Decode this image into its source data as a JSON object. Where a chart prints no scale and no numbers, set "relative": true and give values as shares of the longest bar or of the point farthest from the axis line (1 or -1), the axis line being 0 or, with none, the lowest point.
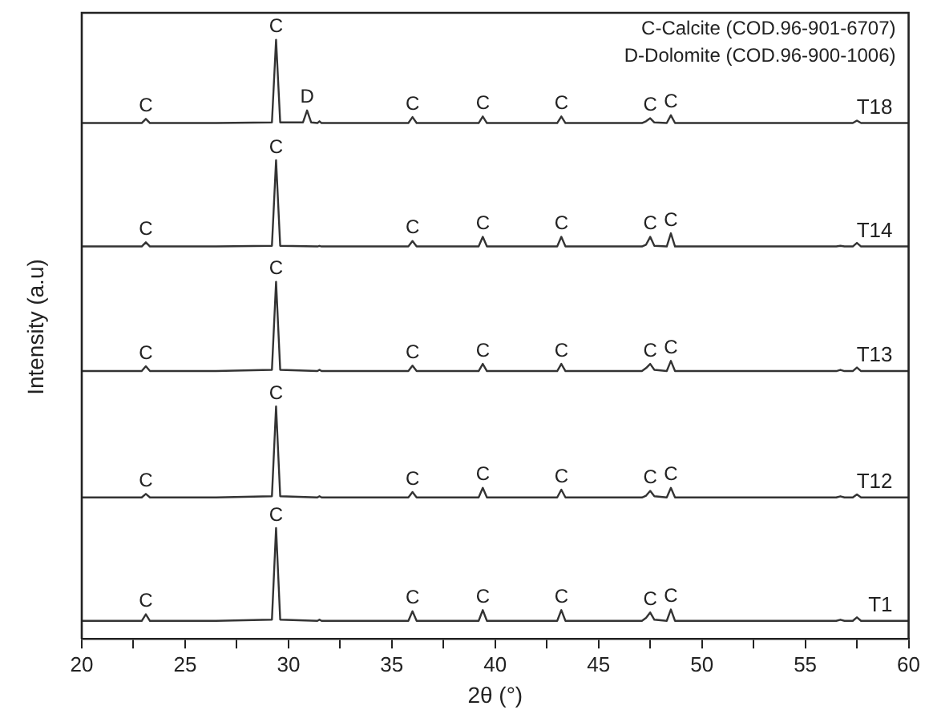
{
  "chart_data": {
    "type": "line",
    "relative": true,
    "xlim": [
      20,
      60
    ],
    "xticks": [
      20,
      {
        "value": 22.5,
        "label": null
      },
      25,
      {
        "value": 27.5,
        "label": null
      },
      30,
      {
        "value": 32.5,
        "label": null
      },
      35,
      {
        "value": 37.5,
        "label": null
      },
      40,
      {
        "value": 42.5,
        "label": null
      },
      45,
      {
        "value": 47.5,
        "label": null
      },
      50,
      {
        "value": 52.5,
        "label": null
      },
      55,
      {
        "value": 57.5,
        "label": null
      },
      60
    ],
    "xlabel": "2θ (°)",
    "ylabel": "Intensity (a.u)",
    "series": [
      {
        "name": "T18",
        "color": "#333333",
        "x": [
          20,
          22.9,
          23.1,
          23.3,
          26.5,
          29.2,
          29.4,
          29.6,
          30.7,
          30.9,
          31.1,
          31.4,
          31.5,
          31.6,
          35.8,
          36.0,
          36.2,
          39.2,
          39.4,
          39.6,
          43.0,
          43.2,
          43.4,
          47.1,
          47.3,
          47.5,
          47.7,
          48.3,
          48.5,
          48.7,
          56.5,
          56.7,
          56.9,
          57.3,
          57.5,
          57.7,
          60
        ],
        "values": [
          0.861,
          0.861,
          0.868,
          0.861,
          0.861,
          0.862,
          1,
          0.862,
          0.862,
          0.882,
          0.862,
          0.861,
          0.864,
          0.861,
          0.861,
          0.871,
          0.861,
          0.861,
          0.872,
          0.861,
          0.861,
          0.872,
          0.861,
          0.861,
          0.864,
          0.869,
          0.862,
          0.861,
          0.874,
          0.861,
          0.861,
          0.861,
          0.861,
          0.861,
          0.865,
          0.861,
          0.861
        ]
      },
      {
        "name": "T14",
        "color": "#333333",
        "x": [
          20,
          22.9,
          23.1,
          23.3,
          26.5,
          29.2,
          29.4,
          29.6,
          31.4,
          31.5,
          31.6,
          35.8,
          36.0,
          36.2,
          39.2,
          39.4,
          39.6,
          43.0,
          43.2,
          43.4,
          47.1,
          47.3,
          47.5,
          47.7,
          48.3,
          48.5,
          48.7,
          56.5,
          56.7,
          56.9,
          57.3,
          57.5,
          57.7,
          60
        ],
        "values": [
          0.655,
          0.655,
          0.662,
          0.655,
          0.655,
          0.656,
          0.799,
          0.656,
          0.655,
          0.656,
          0.655,
          0.655,
          0.664,
          0.655,
          0.655,
          0.671,
          0.655,
          0.655,
          0.671,
          0.655,
          0.655,
          0.658,
          0.671,
          0.656,
          0.655,
          0.677,
          0.655,
          0.655,
          0.656,
          0.655,
          0.655,
          0.661,
          0.655,
          0.655
        ]
      },
      {
        "name": "T13",
        "color": "#333333",
        "x": [
          20,
          22.9,
          23.1,
          23.3,
          26.5,
          29.2,
          29.4,
          29.6,
          31.4,
          31.5,
          31.6,
          35.8,
          36.0,
          36.2,
          39.2,
          39.4,
          39.6,
          43.0,
          43.2,
          43.4,
          47.1,
          47.3,
          47.5,
          47.7,
          48.3,
          48.5,
          48.7,
          56.5,
          56.7,
          56.9,
          57.3,
          57.5,
          57.7,
          60
        ],
        "values": [
          0.447,
          0.447,
          0.455,
          0.447,
          0.447,
          0.449,
          0.596,
          0.449,
          0.447,
          0.449,
          0.447,
          0.447,
          0.456,
          0.447,
          0.447,
          0.459,
          0.447,
          0.447,
          0.459,
          0.447,
          0.447,
          0.452,
          0.459,
          0.449,
          0.447,
          0.464,
          0.447,
          0.447,
          0.449,
          0.447,
          0.447,
          0.453,
          0.447,
          0.447
        ]
      },
      {
        "name": "T12",
        "color": "#333333",
        "x": [
          20,
          22.9,
          23.1,
          23.3,
          26.5,
          29.2,
          29.4,
          29.6,
          31.4,
          31.5,
          31.6,
          35.8,
          36.0,
          36.2,
          39.2,
          39.4,
          39.6,
          43.0,
          43.2,
          43.4,
          47.1,
          47.3,
          47.5,
          47.7,
          48.3,
          48.5,
          48.7,
          56.5,
          56.7,
          56.9,
          57.3,
          57.5,
          57.7,
          60
        ],
        "values": [
          0.236,
          0.236,
          0.242,
          0.236,
          0.236,
          0.238,
          0.388,
          0.238,
          0.236,
          0.238,
          0.236,
          0.236,
          0.245,
          0.236,
          0.236,
          0.252,
          0.236,
          0.236,
          0.249,
          0.236,
          0.236,
          0.239,
          0.247,
          0.238,
          0.236,
          0.252,
          0.236,
          0.236,
          0.238,
          0.236,
          0.236,
          0.241,
          0.236,
          0.236
        ]
      },
      {
        "name": "T1",
        "color": "#333333",
        "x": [
          20,
          22.9,
          23.1,
          23.3,
          26.5,
          29.2,
          29.4,
          29.6,
          31.4,
          31.5,
          31.6,
          35.8,
          36.0,
          36.2,
          39.2,
          39.4,
          39.6,
          43.0,
          43.2,
          43.4,
          47.1,
          47.3,
          47.5,
          47.7,
          48.3,
          48.5,
          48.7,
          56.5,
          56.7,
          56.9,
          57.3,
          57.5,
          57.7,
          60
        ],
        "values": [
          0.03,
          0.03,
          0.041,
          0.03,
          0.03,
          0.032,
          0.185,
          0.032,
          0.03,
          0.032,
          0.03,
          0.03,
          0.046,
          0.03,
          0.03,
          0.048,
          0.03,
          0.03,
          0.048,
          0.03,
          0.03,
          0.035,
          0.044,
          0.032,
          0.03,
          0.049,
          0.03,
          0.03,
          0.032,
          0.03,
          0.03,
          0.036,
          0.03,
          0.03
        ]
      }
    ],
    "annotations": [
      "C-Calcite (COD.96-901-6707)",
      "D-Dolomite (COD.96-900-1006)",
      {
        "text": "C",
        "x": 23.1,
        "y": 0.868
      },
      {
        "text": "C",
        "x": 29.4,
        "y": 1
      },
      {
        "text": "D",
        "x": 30.9,
        "y": 0.882
      },
      {
        "text": "C",
        "x": 36.0,
        "y": 0.871
      },
      {
        "text": "C",
        "x": 39.4,
        "y": 0.872
      },
      {
        "text": "C",
        "x": 43.2,
        "y": 0.872
      },
      {
        "text": "C",
        "x": 47.5,
        "y": 0.869
      },
      {
        "text": "C",
        "x": 48.5,
        "y": 0.874
      },
      {
        "text": "C",
        "x": 23.1,
        "y": 0.662
      },
      {
        "text": "C",
        "x": 29.4,
        "y": 0.799
      },
      {
        "text": "C",
        "x": 36.0,
        "y": 0.664
      },
      {
        "text": "C",
        "x": 39.4,
        "y": 0.671
      },
      {
        "text": "C",
        "x": 43.2,
        "y": 0.671
      },
      {
        "text": "C",
        "x": 47.5,
        "y": 0.671
      },
      {
        "text": "C",
        "x": 48.5,
        "y": 0.677
      },
      {
        "text": "C",
        "x": 23.1,
        "y": 0.455
      },
      {
        "text": "C",
        "x": 29.4,
        "y": 0.596
      },
      {
        "text": "C",
        "x": 36.0,
        "y": 0.456
      },
      {
        "text": "C",
        "x": 39.4,
        "y": 0.459
      },
      {
        "text": "C",
        "x": 43.2,
        "y": 0.459
      },
      {
        "text": "C",
        "x": 47.5,
        "y": 0.459
      },
      {
        "text": "C",
        "x": 48.5,
        "y": 0.464
      },
      {
        "text": "C",
        "x": 23.1,
        "y": 0.242
      },
      {
        "text": "C",
        "x": 29.4,
        "y": 0.388
      },
      {
        "text": "C",
        "x": 36.0,
        "y": 0.245
      },
      {
        "text": "C",
        "x": 39.4,
        "y": 0.252
      },
      {
        "text": "C",
        "x": 43.2,
        "y": 0.249
      },
      {
        "text": "C",
        "x": 47.5,
        "y": 0.247
      },
      {
        "text": "C",
        "x": 48.5,
        "y": 0.252
      },
      {
        "text": "C",
        "x": 23.1,
        "y": 0.041
      },
      {
        "text": "C",
        "x": 29.4,
        "y": 0.185
      },
      {
        "text": "C",
        "x": 36.0,
        "y": 0.046
      },
      {
        "text": "C",
        "x": 39.4,
        "y": 0.048
      },
      {
        "text": "C",
        "x": 43.2,
        "y": 0.048
      },
      {
        "text": "C",
        "x": 47.5,
        "y": 0.044
      },
      {
        "text": "C",
        "x": 48.5,
        "y": 0.049
      }
    ]
  }
}
